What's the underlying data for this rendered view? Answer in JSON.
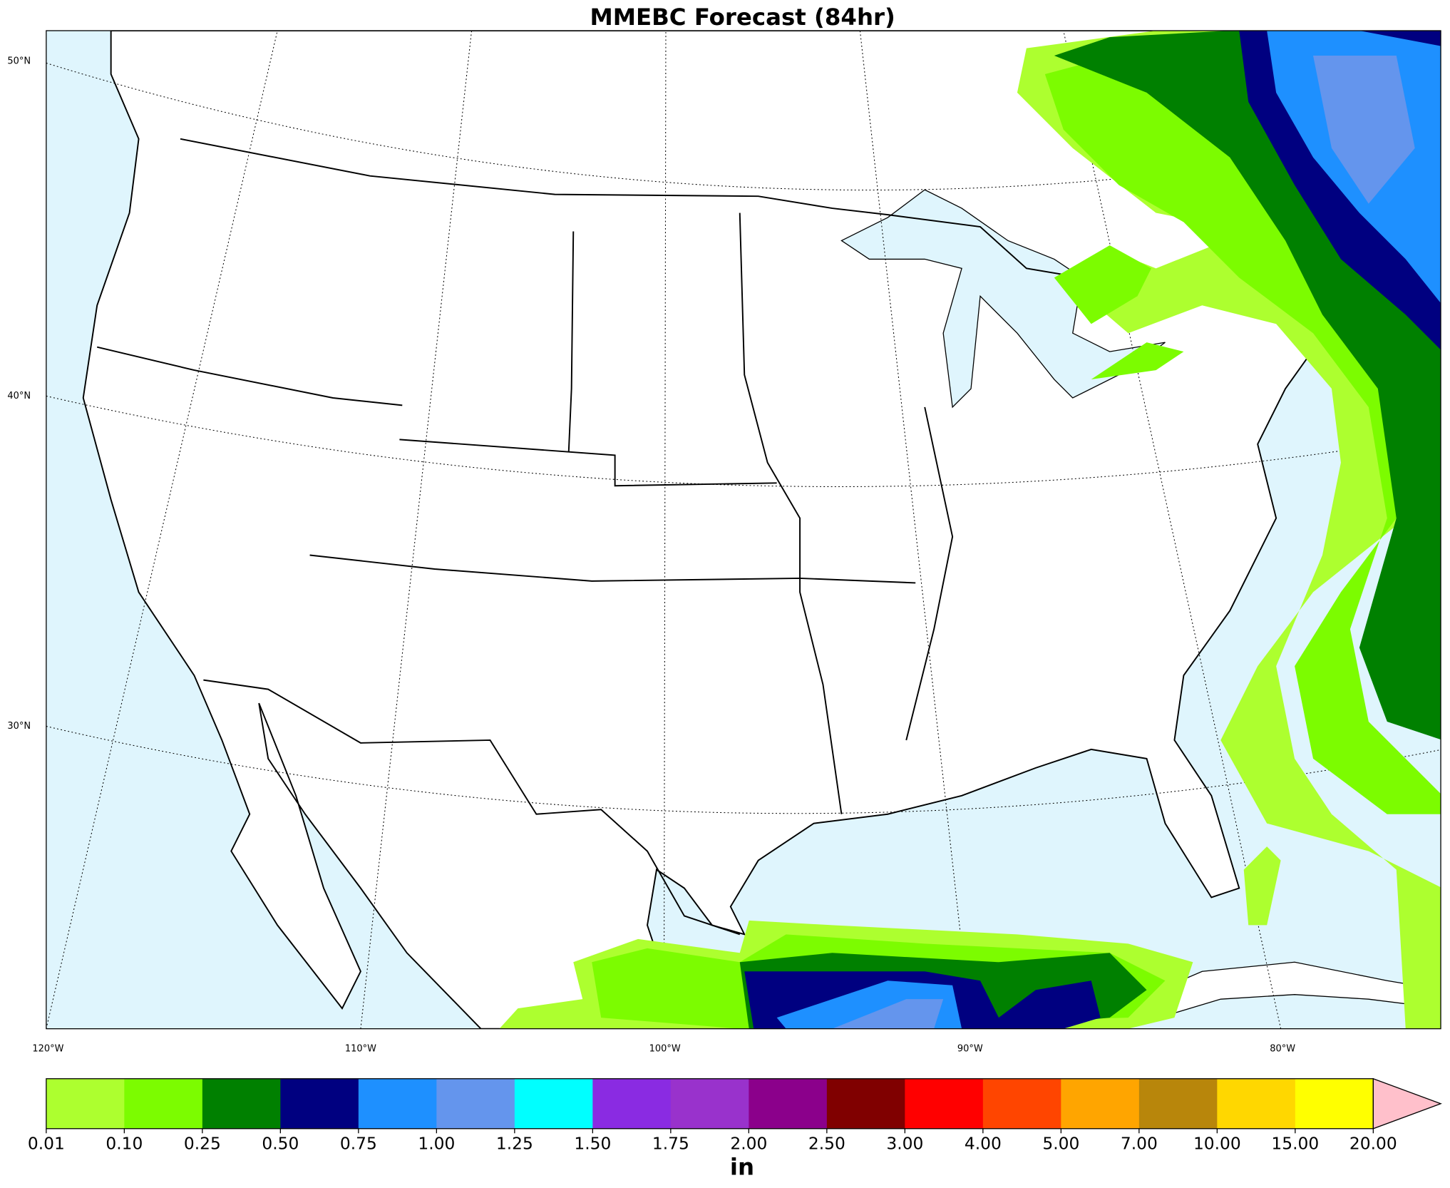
{
  "title": "MMEBC Forecast (84hr)",
  "lat_labels": [
    "50°N",
    "40°N",
    "30°N"
  ],
  "lon_labels": [
    "120°W",
    "110°W",
    "100°W",
    "90°W",
    "80°W"
  ],
  "colorbar": {
    "levels": [
      "0.01",
      "0.10",
      "0.25",
      "0.50",
      "0.75",
      "1.00",
      "1.25",
      "1.50",
      "1.75",
      "2.00",
      "2.50",
      "3.00",
      "4.00",
      "5.00",
      "7.00",
      "10.00",
      "15.00",
      "20.00"
    ],
    "colors": [
      "#adff2f",
      "#7cfc00",
      "#008000",
      "#000080",
      "#1e90ff",
      "#6495ed",
      "#00ffff",
      "#8a2be2",
      "#9932cc",
      "#8b008b",
      "#800000",
      "#ff0000",
      "#ff4500",
      "#ffa500",
      "#b8860b",
      "#ffd700",
      "#ffff00"
    ],
    "extend_color": "#ffc0cb",
    "unit": "in"
  }
}
